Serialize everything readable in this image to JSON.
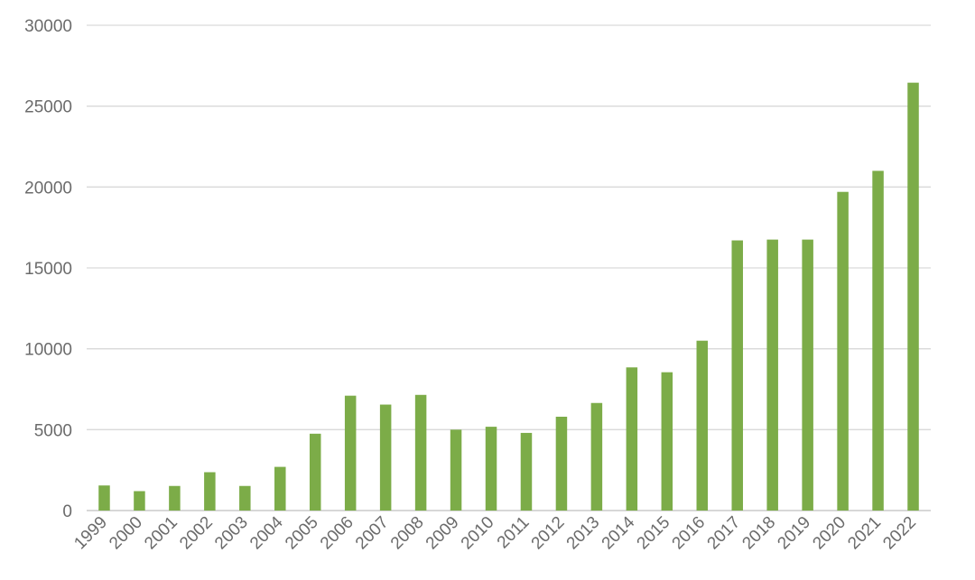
{
  "chart_data": {
    "type": "bar",
    "title": "",
    "xlabel": "",
    "ylabel": "",
    "categories": [
      "1999",
      "2000",
      "2001",
      "2002",
      "2003",
      "2004",
      "2005",
      "2006",
      "2007",
      "2008",
      "2009",
      "2010",
      "2011",
      "2012",
      "2013",
      "2014",
      "2015",
      "2016",
      "2017",
      "2018",
      "2019",
      "2020",
      "2021",
      "2022"
    ],
    "values": [
      1550,
      1200,
      1520,
      2370,
      1520,
      2700,
      4750,
      7100,
      6550,
      7150,
      5000,
      5180,
      4800,
      5800,
      6650,
      8850,
      8550,
      10500,
      16700,
      16750,
      16750,
      19700,
      21000,
      26450
    ],
    "ylim": [
      0,
      30000
    ],
    "yticks": [
      "0",
      "5000",
      "10000",
      "15000",
      "20000",
      "25000",
      "30000"
    ],
    "grid": true,
    "legend": "none",
    "bar_color": "#7cac48"
  }
}
